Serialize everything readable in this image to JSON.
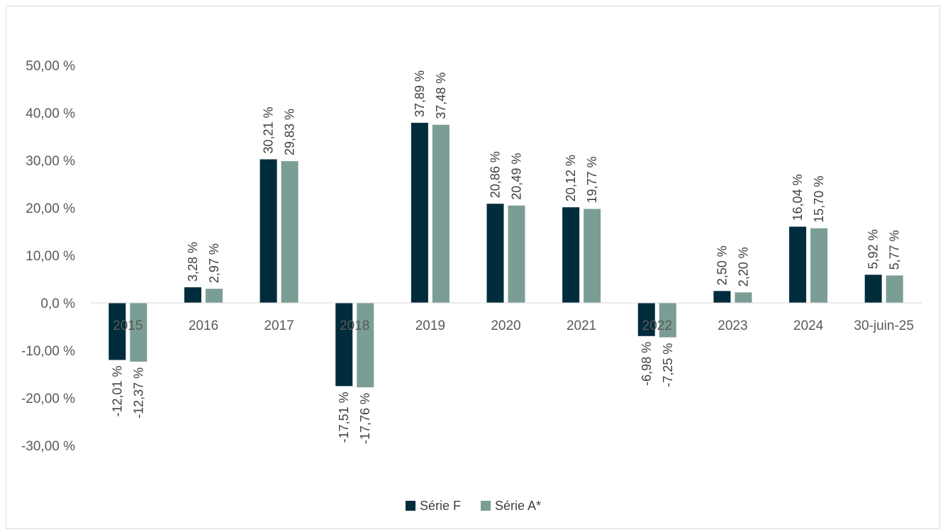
{
  "chart_data": {
    "type": "bar",
    "categories": [
      "2015",
      "2016",
      "2017",
      "2018",
      "2019",
      "2020",
      "2021",
      "2022",
      "2023",
      "2024",
      "30-juin-25"
    ],
    "series": [
      {
        "name": "Série F",
        "color": "#002c3c",
        "values": [
          -12.01,
          3.28,
          30.21,
          -17.51,
          37.89,
          20.86,
          20.12,
          -6.98,
          2.5,
          16.04,
          5.92
        ],
        "labels": [
          "-12,01 %",
          "3,28 %",
          "30,21 %",
          "-17,51 %",
          "37,89 %",
          "20,86 %",
          "20,12 %",
          "-6,98 %",
          "2,50 %",
          "16,04 %",
          "5,92 %"
        ]
      },
      {
        "name": "Série A*",
        "color": "#7a9e95",
        "values": [
          -12.37,
          2.97,
          29.83,
          -17.76,
          37.48,
          20.49,
          19.77,
          -7.25,
          2.2,
          15.7,
          5.77
        ],
        "labels": [
          "-12,37 %",
          "2,97 %",
          "29,83 %",
          "-17,76 %",
          "37,48 %",
          "20,49 %",
          "19,77 %",
          "-7,25 %",
          "2,20 %",
          "15,70 %",
          "5,77 %"
        ]
      }
    ],
    "y_ticks": [
      50,
      40,
      30,
      20,
      10,
      0,
      -10,
      -20,
      -30
    ],
    "y_tick_labels": [
      "50,00 %",
      "40,00 %",
      "30,00 %",
      "20,00 %",
      "10,00 %",
      "0,0 %",
      "-10,00 %",
      "-20,00 %",
      "-30,00 %"
    ],
    "ylim": [
      -30,
      50
    ],
    "grid": false,
    "legend_position": "bottom-center",
    "title": "",
    "xlabel": "",
    "ylabel": ""
  }
}
